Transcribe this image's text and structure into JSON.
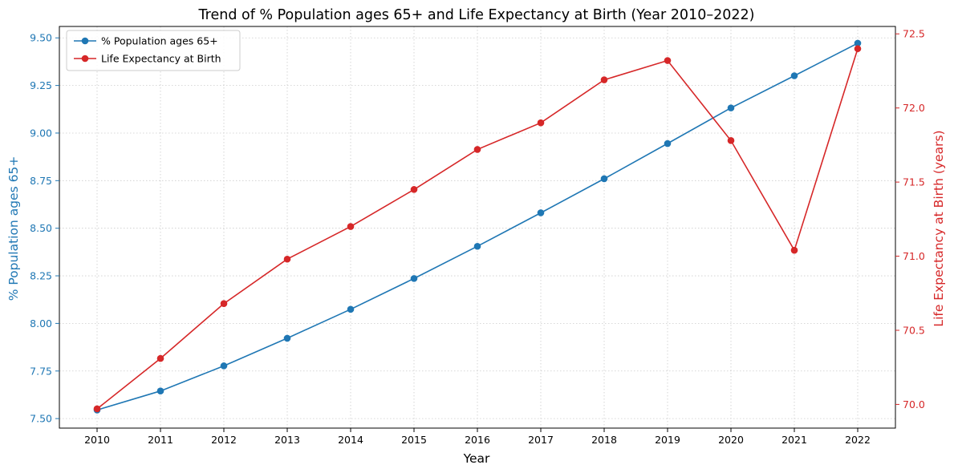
{
  "chart_data": {
    "type": "line",
    "title": "Trend of % Population ages 65+ and Life Expectancy at Birth (Year 2010–2022)",
    "xlabel": "Year",
    "ylabel_left": "% Population ages 65+",
    "ylabel_right": "Life Expectancy at Birth (years)",
    "categories": [
      "2010",
      "2011",
      "2012",
      "2013",
      "2014",
      "2015",
      "2016",
      "2017",
      "2018",
      "2019",
      "2020",
      "2021",
      "2022"
    ],
    "ylim_left": [
      7.45,
      9.56
    ],
    "ylim_right": [
      69.84,
      72.55
    ],
    "yticks_left": [
      "7.50",
      "7.75",
      "8.00",
      "8.25",
      "8.50",
      "8.75",
      "9.00",
      "9.25",
      "9.50"
    ],
    "yticks_right": [
      "70.0",
      "70.5",
      "71.0",
      "71.5",
      "72.0",
      "72.5"
    ],
    "grid": true,
    "legend_position": "top-left",
    "series": [
      {
        "name": "% Population ages 65+",
        "axis": "left",
        "color": "#1f77b4",
        "values": [
          7.545,
          7.645,
          7.777,
          7.922,
          8.074,
          8.236,
          8.405,
          8.581,
          8.76,
          8.945,
          9.132,
          9.301,
          9.472
        ]
      },
      {
        "name": "Life Expectancy at Birth",
        "axis": "right",
        "color": "#d62728",
        "values": [
          69.97,
          70.31,
          70.68,
          70.98,
          71.2,
          71.45,
          71.72,
          71.9,
          72.19,
          72.32,
          71.78,
          71.04,
          72.4
        ]
      }
    ]
  }
}
